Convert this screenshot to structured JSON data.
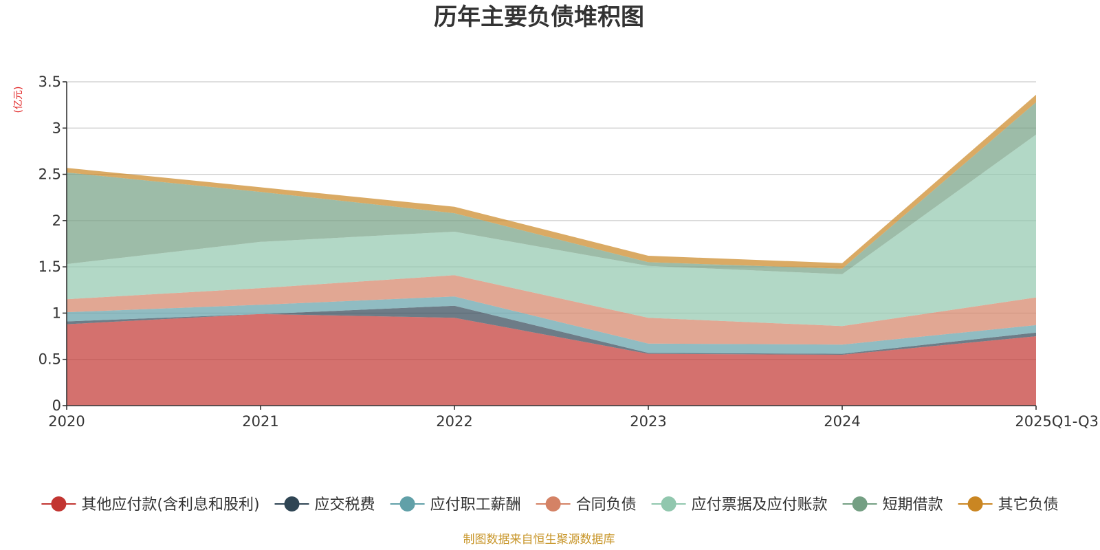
{
  "chart_data": {
    "type": "area",
    "stacked": true,
    "title": "历年主要负债堆积图",
    "unit_label": "(亿元)",
    "categories": [
      "2020",
      "2021",
      "2022",
      "2023",
      "2024",
      "2025Q1-Q3"
    ],
    "ylim": [
      0,
      3.5
    ],
    "yticks": [
      0,
      0.5,
      1,
      1.5,
      2,
      2.5,
      3,
      3.5
    ],
    "ytick_labels": [
      "0",
      "0.5",
      "1",
      "1.5",
      "2",
      "2.5",
      "3",
      "3.5"
    ],
    "grid": true,
    "legend_position": "bottom",
    "series": [
      {
        "name": "其他应付款(含利息和股利)",
        "color": "#c23531",
        "values": [
          0.88,
          0.99,
          0.95,
          0.56,
          0.55,
          0.75
        ]
      },
      {
        "name": "应交税费",
        "color": "#2f4554",
        "values": [
          0.03,
          0.0,
          0.13,
          0.01,
          0.01,
          0.04
        ]
      },
      {
        "name": "应付职工薪酬",
        "color": "#61a0a8",
        "values": [
          0.1,
          0.1,
          0.1,
          0.1,
          0.1,
          0.08
        ]
      },
      {
        "name": "合同负债",
        "color": "#d48265",
        "values": [
          0.14,
          0.18,
          0.23,
          0.28,
          0.2,
          0.3
        ]
      },
      {
        "name": "应付票据及应付账款",
        "color": "#91c7ae",
        "values": [
          0.38,
          0.5,
          0.47,
          0.56,
          0.56,
          1.76
        ]
      },
      {
        "name": "短期借款",
        "color": "#749f83",
        "values": [
          0.99,
          0.54,
          0.2,
          0.04,
          0.06,
          0.35
        ]
      },
      {
        "name": "其它负债",
        "color": "#ca8622",
        "values": [
          0.05,
          0.05,
          0.07,
          0.07,
          0.06,
          0.08
        ]
      }
    ],
    "source": "制图数据来自恒生聚源数据库"
  }
}
